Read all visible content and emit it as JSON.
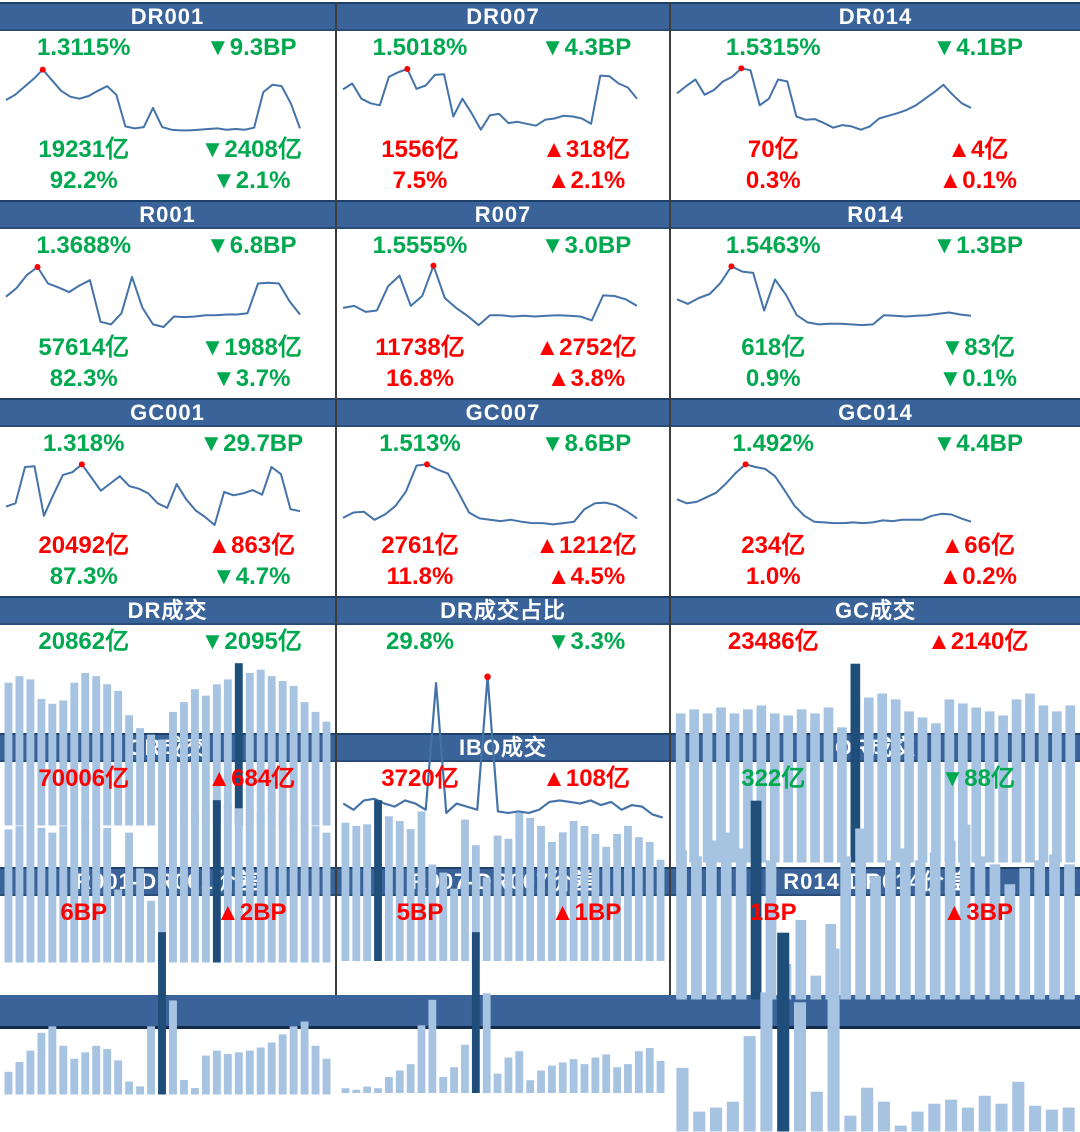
{
  "colors": {
    "header_bg": "#3A6399",
    "header_text": "#FFFFFF",
    "line": "#4473A9",
    "bar_light": "#A7C3E2",
    "bar_dark": "#1E4E79",
    "up_red": "#FE0000",
    "down_green": "#00A94F",
    "peak_dot": "#FF0000",
    "footer_bg": "#3A6399"
  },
  "chart_data": [
    {
      "title": "DR001",
      "type": "line",
      "stats": [
        {
          "label": "1.3115%",
          "color": "green"
        },
        {
          "label": "▼9.3BP",
          "color": "green"
        },
        {
          "label": "19231亿",
          "color": "green"
        },
        {
          "label": "▼2408亿",
          "color": "green"
        },
        {
          "label": "92.2%",
          "color": "green"
        },
        {
          "label": "▼2.1%",
          "color": "green"
        }
      ],
      "values": [
        50,
        58,
        70,
        82,
        96,
        80,
        64,
        55,
        52,
        56,
        64,
        71,
        58,
        10,
        7,
        9,
        38,
        9,
        5,
        4,
        4,
        5,
        6,
        7,
        5,
        6,
        5,
        8,
        62,
        73,
        71,
        45,
        7
      ],
      "peak_index": 4
    },
    {
      "title": "DR007",
      "type": "line",
      "stats": [
        {
          "label": "1.5018%",
          "color": "green"
        },
        {
          "label": "▼4.3BP",
          "color": "green"
        },
        {
          "label": "1556亿",
          "color": "red"
        },
        {
          "label": "▲318亿",
          "color": "red"
        },
        {
          "label": "7.5%",
          "color": "red"
        },
        {
          "label": "▲2.1%",
          "color": "red"
        }
      ],
      "values": [
        66,
        75,
        52,
        45,
        42,
        85,
        92,
        97,
        67,
        72,
        88,
        89,
        25,
        52,
        30,
        5,
        27,
        29,
        15,
        17,
        14,
        11,
        20,
        22,
        26,
        25,
        22,
        14,
        87,
        86,
        75,
        69,
        52
      ],
      "peak_index": 7
    },
    {
      "title": "DR014",
      "type": "line",
      "stats": [
        {
          "label": "1.5315%",
          "color": "green"
        },
        {
          "label": "▼4.1BP",
          "color": "green"
        },
        {
          "label": "70亿",
          "color": "red"
        },
        {
          "label": "▲4亿",
          "color": "red"
        },
        {
          "label": "0.3%",
          "color": "red"
        },
        {
          "label": "▲0.1%",
          "color": "red"
        }
      ],
      "values": [
        60,
        71,
        81,
        58,
        65,
        78,
        85,
        98,
        95,
        42,
        52,
        81,
        78,
        25,
        20,
        21,
        15,
        8,
        12,
        10,
        5,
        10,
        22,
        26,
        30,
        35,
        42,
        52,
        62,
        73,
        58,
        45,
        38
      ],
      "peak_index": 7
    },
    {
      "title": "R001",
      "type": "line",
      "stats": [
        {
          "label": "1.3688%",
          "color": "green"
        },
        {
          "label": "▼6.8BP",
          "color": "green"
        },
        {
          "label": "57614亿",
          "color": "green"
        },
        {
          "label": "▼1988亿",
          "color": "green"
        },
        {
          "label": "82.3%",
          "color": "green"
        },
        {
          "label": "▼3.7%",
          "color": "green"
        }
      ],
      "values": [
        52,
        65,
        85,
        97,
        72,
        66,
        59,
        69,
        77,
        14,
        10,
        27,
        82,
        35,
        10,
        6,
        22,
        21,
        22,
        24,
        24,
        25,
        25,
        27,
        72,
        73,
        72,
        45,
        25
      ],
      "peak_index": 3
    },
    {
      "title": "R007",
      "type": "line",
      "stats": [
        {
          "label": "1.5555%",
          "color": "green"
        },
        {
          "label": "▼3.0BP",
          "color": "green"
        },
        {
          "label": "11738亿",
          "color": "red"
        },
        {
          "label": "▲2752亿",
          "color": "red"
        },
        {
          "label": "16.8%",
          "color": "red"
        },
        {
          "label": "▲3.8%",
          "color": "red"
        }
      ],
      "values": [
        35,
        38,
        29,
        31,
        68,
        84,
        38,
        53,
        99,
        50,
        35,
        23,
        9,
        24,
        24,
        22,
        23,
        22,
        23,
        24,
        23,
        22,
        16,
        54,
        53,
        48,
        38
      ],
      "peak_index": 8
    },
    {
      "title": "R014",
      "type": "line",
      "stats": [
        {
          "label": "1.5463%",
          "color": "green"
        },
        {
          "label": "▼1.3BP",
          "color": "green"
        },
        {
          "label": "618亿",
          "color": "green"
        },
        {
          "label": "▼83亿",
          "color": "green"
        },
        {
          "label": "0.9%",
          "color": "green"
        },
        {
          "label": "▼0.1%",
          "color": "green"
        }
      ],
      "values": [
        48,
        41,
        50,
        56,
        73,
        98,
        90,
        88,
        31,
        78,
        55,
        24,
        13,
        10,
        11,
        11,
        10,
        9,
        10,
        24,
        23,
        22,
        23,
        24,
        26,
        28,
        25,
        23
      ],
      "peak_index": 5
    },
    {
      "title": "GC001",
      "type": "line",
      "stats": [
        {
          "label": "1.318%",
          "color": "green"
        },
        {
          "label": "▼29.7BP",
          "color": "green"
        },
        {
          "label": "20492亿",
          "color": "red"
        },
        {
          "label": "▲863亿",
          "color": "red"
        },
        {
          "label": "87.3%",
          "color": "green"
        },
        {
          "label": "▼4.7%",
          "color": "green"
        }
      ],
      "values": [
        34,
        39,
        94,
        95,
        20,
        52,
        82,
        86,
        98,
        78,
        58,
        69,
        80,
        65,
        61,
        54,
        39,
        32,
        68,
        45,
        28,
        18,
        6,
        56,
        51,
        54,
        59,
        52,
        94,
        83,
        30,
        27
      ],
      "peak_index": 8
    },
    {
      "title": "GC007",
      "type": "line",
      "stats": [
        {
          "label": "1.513%",
          "color": "green"
        },
        {
          "label": "▼8.6BP",
          "color": "green"
        },
        {
          "label": "2761亿",
          "color": "red"
        },
        {
          "label": "▲1212亿",
          "color": "red"
        },
        {
          "label": "11.8%",
          "color": "red"
        },
        {
          "label": "▲4.5%",
          "color": "red"
        }
      ],
      "values": [
        17,
        25,
        26,
        14,
        22,
        35,
        57,
        96,
        98,
        90,
        84,
        55,
        25,
        16,
        14,
        12,
        14,
        11,
        9,
        9,
        7,
        9,
        11,
        30,
        39,
        40,
        36,
        27,
        16
      ],
      "peak_index": 8
    },
    {
      "title": "GC014",
      "type": "line",
      "stats": [
        {
          "label": "1.492%",
          "color": "green"
        },
        {
          "label": "▼4.4BP",
          "color": "green"
        },
        {
          "label": "234亿",
          "color": "red"
        },
        {
          "label": "▲66亿",
          "color": "red"
        },
        {
          "label": "1.0%",
          "color": "red"
        },
        {
          "label": "▲0.2%",
          "color": "red"
        }
      ],
      "values": [
        45,
        39,
        41,
        48,
        55,
        69,
        85,
        98,
        94,
        91,
        80,
        58,
        35,
        20,
        11,
        10,
        9,
        9,
        10,
        9,
        10,
        13,
        12,
        14,
        14,
        14,
        20,
        23,
        22,
        16,
        11
      ],
      "peak_index": 7
    },
    {
      "title": "DR成交",
      "type": "bar",
      "stats": [
        {
          "label": "20862亿",
          "color": "green"
        },
        {
          "label": "▼2095亿",
          "color": "green"
        }
      ],
      "values": [
        88,
        92,
        90,
        78,
        75,
        77,
        88,
        94,
        92,
        87,
        83,
        68,
        60,
        56,
        53,
        70,
        76,
        84,
        80,
        87,
        90,
        100,
        94,
        96,
        92,
        89,
        86,
        76,
        70,
        64
      ],
      "highlight_index": 21
    },
    {
      "title": "DR成交占比",
      "type": "line",
      "stats": [
        {
          "label": "29.8%",
          "color": "green"
        },
        {
          "label": "▼3.3%",
          "color": "green"
        }
      ],
      "values": [
        11,
        7,
        13,
        14,
        11,
        9,
        13,
        11,
        7,
        88,
        5,
        11,
        9,
        7,
        92,
        6,
        5,
        6,
        5,
        7,
        12,
        13,
        12,
        11,
        13,
        10,
        12,
        7,
        10,
        9,
        4,
        2
      ],
      "peak_index": 14
    },
    {
      "title": "GC成交",
      "type": "bar",
      "stats": [
        {
          "label": "23486亿",
          "color": "red"
        },
        {
          "label": "▲2140亿",
          "color": "red"
        }
      ],
      "values": [
        75,
        77,
        75,
        78,
        75,
        77,
        79,
        75,
        74,
        77,
        75,
        78,
        68,
        100,
        83,
        85,
        82,
        76,
        73,
        70,
        82,
        80,
        78,
        76,
        74,
        82,
        85,
        79,
        76,
        79
      ],
      "highlight_index": 13
    },
    {
      "title": "CR成交",
      "type": "bar",
      "stats": [
        {
          "label": "70006亿",
          "color": "red"
        },
        {
          "label": "▲684亿",
          "color": "red"
        }
      ],
      "values": [
        82,
        84,
        85,
        83,
        80,
        84,
        86,
        88,
        85,
        83,
        45,
        80,
        58,
        38,
        85,
        88,
        90,
        92,
        96,
        100,
        97,
        95,
        94,
        93,
        96,
        92,
        90,
        87,
        84,
        80
      ],
      "highlight_index": 19
    },
    {
      "title": "IBO成交",
      "type": "bar",
      "stats": [
        {
          "label": "3720亿",
          "color": "red"
        },
        {
          "label": "▲108亿",
          "color": "red"
        }
      ],
      "values": [
        86,
        84,
        85,
        100,
        90,
        87,
        82,
        93,
        60,
        55,
        45,
        88,
        72,
        52,
        78,
        76,
        92,
        89,
        84,
        74,
        80,
        87,
        84,
        79,
        71,
        79,
        84,
        77,
        74,
        63
      ],
      "highlight_index": 3
    },
    {
      "title": "OR成交",
      "type": "bar",
      "stats": [
        {
          "label": "322亿",
          "color": "green"
        },
        {
          "label": "▼88亿",
          "color": "green"
        }
      ],
      "values": [
        75,
        72,
        80,
        84,
        76,
        100,
        70,
        18,
        40,
        12,
        38,
        72,
        86,
        62,
        70,
        76,
        70,
        74,
        80,
        88,
        72,
        68,
        58,
        66,
        70,
        73,
        68
      ],
      "highlight_index": 5
    },
    {
      "title": "R001-DR001价差",
      "type": "bar",
      "stats": [
        {
          "label": "6BP",
          "color": "red"
        },
        {
          "label": "▲2BP",
          "color": "red"
        }
      ],
      "values": [
        14,
        20,
        27,
        38,
        42,
        30,
        22,
        26,
        30,
        28,
        21,
        8,
        5,
        42,
        100,
        58,
        9,
        4,
        24,
        27,
        25,
        26,
        27,
        29,
        32,
        37,
        42,
        45,
        30,
        22
      ],
      "highlight_index": 14
    },
    {
      "title": "R007-DR007价差",
      "type": "bar",
      "stats": [
        {
          "label": "5BP",
          "color": "red"
        },
        {
          "label": "▲1BP",
          "color": "red"
        }
      ],
      "values": [
        3,
        2,
        4,
        3,
        10,
        14,
        18,
        42,
        58,
        10,
        16,
        30,
        100,
        62,
        12,
        22,
        26,
        8,
        14,
        17,
        19,
        21,
        18,
        22,
        24,
        16,
        18,
        26,
        28,
        20
      ],
      "highlight_index": 12
    },
    {
      "title": "R014-DR014价差",
      "type": "bar",
      "stats": [
        {
          "label": "1BP",
          "color": "red"
        },
        {
          "label": "▲3BP",
          "color": "red"
        }
      ],
      "values": [
        32,
        10,
        12,
        15,
        48,
        70,
        100,
        65,
        20,
        92,
        8,
        22,
        15,
        3,
        10,
        14,
        16,
        12,
        18,
        14,
        25,
        13,
        11,
        12
      ],
      "highlight_index": 6
    }
  ]
}
